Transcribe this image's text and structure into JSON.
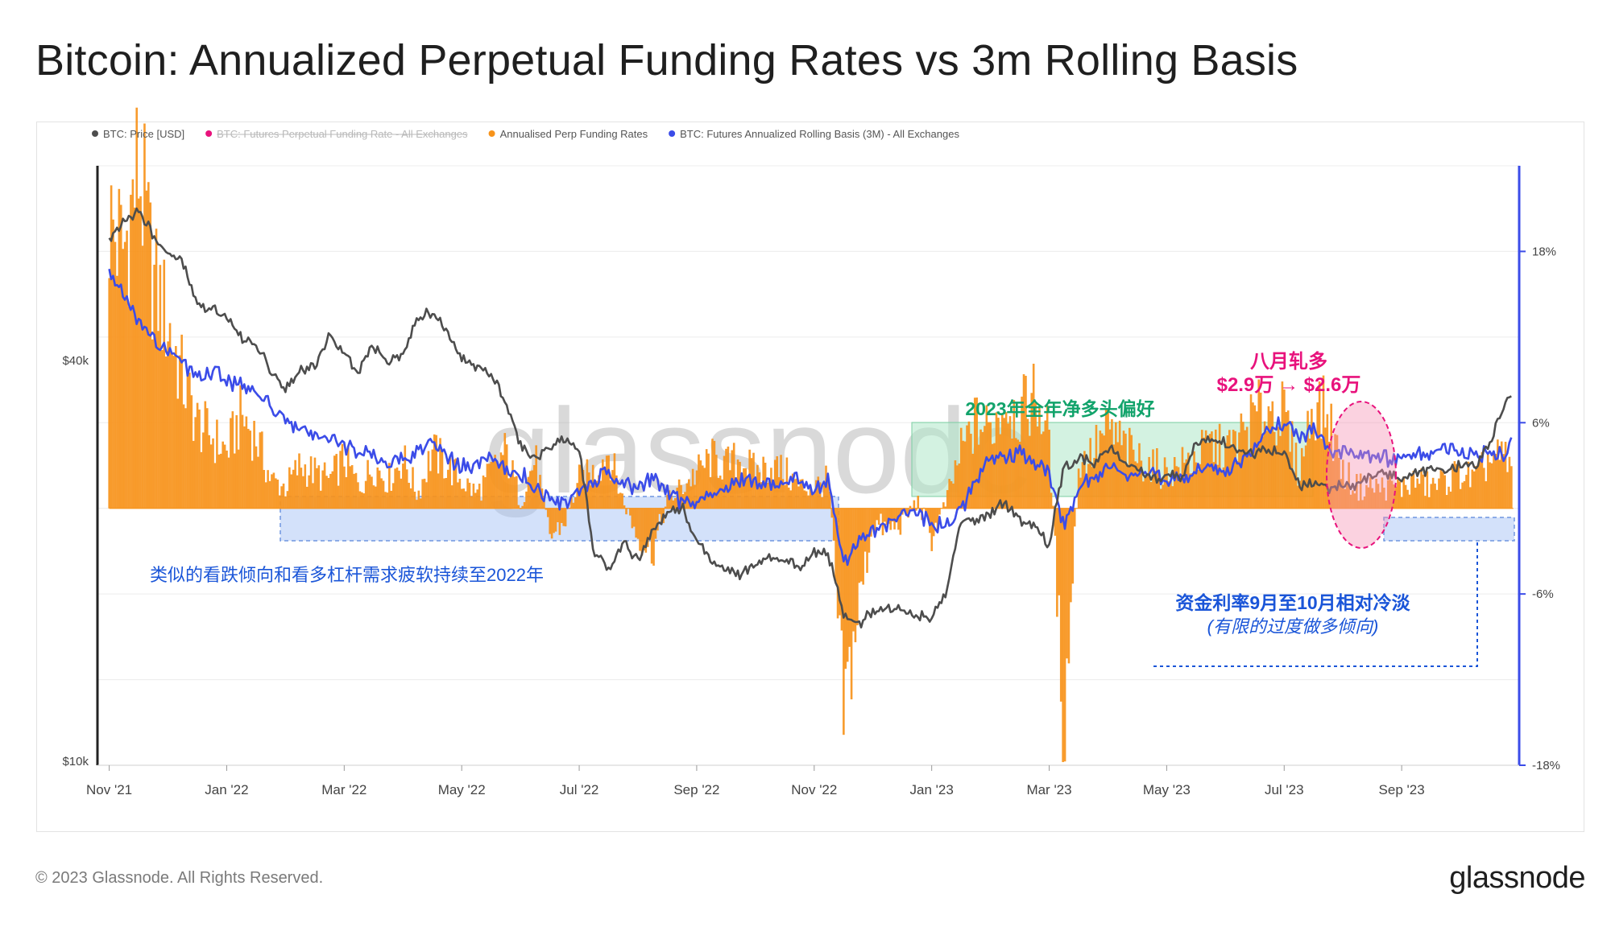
{
  "title": "Bitcoin: Annualized Perpetual Funding Rates vs 3m Rolling Basis",
  "footer": {
    "copyright": "© 2023 Glassnode. All Rights Reserved.",
    "brand": "glassnode"
  },
  "colors": {
    "price": "#4d4d4d",
    "funding_struck": "#e8127c",
    "funding_bars": "#f7931a",
    "basis": "#3b4ce8",
    "green": "#12a36b",
    "pink": "#e8127c",
    "blue_text": "#1a55d8"
  },
  "chart_data": {
    "type": "line",
    "watermark": "glassnode",
    "legend": [
      {
        "label": "BTC: Price [USD]",
        "color": "#4d4d4d",
        "struck": false
      },
      {
        "label": "BTC: Futures Perpetual Funding Rate - All Exchanges",
        "color": "#e8127c",
        "struck": true
      },
      {
        "label": "Annualised Perp Funding Rates",
        "color": "#f7931a",
        "struck": false
      },
      {
        "label": "BTC: Futures Annualized Rolling Basis (3M) - All Exchanges",
        "color": "#3b4ce8",
        "struck": false
      }
    ],
    "x_ticks": [
      "Nov '21",
      "Jan '22",
      "Mar '22",
      "May '22",
      "Jul '22",
      "Sep '22",
      "Nov '22",
      "Jan '23",
      "Mar '23",
      "May '23",
      "Jul '23",
      "Sep '23"
    ],
    "x_range_months": [
      -0.2,
      24.0
    ],
    "y_left": {
      "scale": "log",
      "ticks": [
        "$40k",
        "$10k"
      ],
      "tick_values": [
        40000,
        10000
      ]
    },
    "y_right": {
      "ticks": [
        "18%",
        "6%",
        "-6%",
        "-18%"
      ],
      "tick_values": [
        18,
        6,
        -6,
        -18
      ],
      "range": [
        -18,
        24
      ]
    },
    "series": [
      {
        "name": "BTC: Price [USD]",
        "axis": "left",
        "x": [
          0,
          0.25,
          0.5,
          0.75,
          1.0,
          1.25,
          1.5,
          1.75,
          2.0,
          2.25,
          2.5,
          2.75,
          3.0,
          3.25,
          3.5,
          3.75,
          4.0,
          4.25,
          4.5,
          4.75,
          5.0,
          5.25,
          5.5,
          5.75,
          6.0,
          6.25,
          6.5,
          6.75,
          7.0,
          7.25,
          7.5,
          7.75,
          8.0,
          8.25,
          8.5,
          8.75,
          9.0,
          9.25,
          9.5,
          9.75,
          10.0,
          10.25,
          10.5,
          10.75,
          11.0,
          11.25,
          11.5,
          11.75,
          12.0,
          12.25,
          12.5,
          12.75,
          13.0,
          13.25,
          13.5,
          13.75,
          14.0,
          14.25,
          14.5,
          14.75,
          15.0,
          15.25,
          15.5,
          15.75,
          16.0,
          16.25,
          16.5,
          16.75,
          17.0,
          17.25,
          17.5,
          17.75,
          18.0,
          18.25,
          18.5,
          18.75,
          19.0,
          19.25,
          19.5,
          19.75,
          20.0,
          20.25,
          20.5,
          20.75,
          21.0,
          21.25,
          21.5,
          21.75,
          22.0,
          22.25,
          22.5,
          22.75,
          23.0,
          23.25,
          23.5,
          23.75,
          23.9
        ],
        "values": [
          61000,
          64500,
          67000,
          62000,
          57500,
          56000,
          49000,
          47500,
          46500,
          43000,
          42000,
          38500,
          36500,
          38500,
          39000,
          43500,
          41000,
          38500,
          42000,
          39500,
          41000,
          46500,
          47500,
          44000,
          40500,
          39000,
          38000,
          35000,
          30000,
          28500,
          29500,
          30500,
          29000,
          20500,
          19500,
          21500,
          20000,
          22000,
          23500,
          24000,
          21500,
          20000,
          19500,
          19000,
          19800,
          20500,
          20000,
          19500,
          20800,
          20300,
          16500,
          16000,
          16800,
          17000,
          16800,
          16500,
          16500,
          17800,
          23000,
          23000,
          23500,
          24500,
          23000,
          22500,
          21000,
          27500,
          28500,
          28000,
          29500,
          28500,
          27500,
          26500,
          27000,
          26500,
          30000,
          30500,
          30000,
          29500,
          29200,
          29300,
          29000,
          26000,
          26000,
          25800,
          25900,
          26000,
          26800,
          27200,
          26500,
          27000,
          27500,
          27000,
          28000,
          27500,
          30000,
          34500,
          35000
        ]
      },
      {
        "name": "BTC: Futures Annualized Rolling Basis (3M) - All Exchanges",
        "axis": "right",
        "x": [
          0,
          0.25,
          0.5,
          0.75,
          1.0,
          1.25,
          1.5,
          1.75,
          2.0,
          2.25,
          2.5,
          2.75,
          3.0,
          3.25,
          3.5,
          3.75,
          4.0,
          4.25,
          4.5,
          4.75,
          5.0,
          5.25,
          5.5,
          5.75,
          6.0,
          6.25,
          6.5,
          6.75,
          7.0,
          7.25,
          7.5,
          7.75,
          8.0,
          8.25,
          8.5,
          8.75,
          9.0,
          9.25,
          9.5,
          9.75,
          10.0,
          10.25,
          10.5,
          10.75,
          11.0,
          11.25,
          11.5,
          11.75,
          12.0,
          12.25,
          12.5,
          12.75,
          13.0,
          13.25,
          13.5,
          13.75,
          14.0,
          14.25,
          14.5,
          14.75,
          15.0,
          15.25,
          15.5,
          15.75,
          16.0,
          16.25,
          16.5,
          16.75,
          17.0,
          17.25,
          17.5,
          17.75,
          18.0,
          18.25,
          18.5,
          18.75,
          19.0,
          19.25,
          19.5,
          19.75,
          20.0,
          20.25,
          20.5,
          20.75,
          21.0,
          21.25,
          21.5,
          21.75,
          22.0,
          22.25,
          22.5,
          22.75,
          23.0,
          23.25,
          23.5,
          23.75,
          23.9
        ],
        "values": [
          16.5,
          15.0,
          13.0,
          12.0,
          11.0,
          10.0,
          9.5,
          9.5,
          9.0,
          8.5,
          8.0,
          7.0,
          6.5,
          5.5,
          5.0,
          4.8,
          4.5,
          4.0,
          3.5,
          3.0,
          3.5,
          4.0,
          5.0,
          3.5,
          3.0,
          3.0,
          3.5,
          3.0,
          2.5,
          1.5,
          0.5,
          0.3,
          1.0,
          2.0,
          2.5,
          2.0,
          1.5,
          2.0,
          1.0,
          0.5,
          0.5,
          1.0,
          1.5,
          2.0,
          1.8,
          2.0,
          1.8,
          2.0,
          1.5,
          1.8,
          -4.0,
          -2.5,
          -1.5,
          -1.0,
          -0.5,
          -0.2,
          -1.0,
          -1.5,
          0.0,
          2.0,
          3.5,
          3.5,
          4.0,
          3.0,
          2.5,
          -1.5,
          1.5,
          2.0,
          3.0,
          2.5,
          2.5,
          2.5,
          2.0,
          2.0,
          2.5,
          3.0,
          2.5,
          3.5,
          4.5,
          5.5,
          6.0,
          5.0,
          5.5,
          4.0,
          4.0,
          3.8,
          3.5,
          3.5,
          3.6,
          3.6,
          3.8,
          4.0,
          4.0,
          3.5,
          3.8,
          3.8,
          4.5
        ]
      },
      {
        "name": "Annualised Perp Funding Rates",
        "axis": "right",
        "x": [
          0,
          0.25,
          0.5,
          0.75,
          1.0,
          1.25,
          1.5,
          1.75,
          2.0,
          2.25,
          2.5,
          2.75,
          3.0,
          3.25,
          3.5,
          3.75,
          4.0,
          4.25,
          4.5,
          4.75,
          5.0,
          5.25,
          5.5,
          5.75,
          6.0,
          6.25,
          6.5,
          6.75,
          7.0,
          7.25,
          7.5,
          7.75,
          8.0,
          8.25,
          8.5,
          8.75,
          9.0,
          9.25,
          9.5,
          9.75,
          10.0,
          10.25,
          10.5,
          10.75,
          11.0,
          11.25,
          11.5,
          11.75,
          12.0,
          12.25,
          12.5,
          12.75,
          13.0,
          13.25,
          13.5,
          13.75,
          14.0,
          14.25,
          14.5,
          14.75,
          15.0,
          15.25,
          15.5,
          15.75,
          16.0,
          16.25,
          16.5,
          16.75,
          17.0,
          17.25,
          17.5,
          17.75,
          18.0,
          18.25,
          18.5,
          18.75,
          19.0,
          19.25,
          19.5,
          19.75,
          20.0,
          20.25,
          20.5,
          20.75,
          21.0,
          21.25,
          21.5,
          21.75,
          22.0,
          22.25,
          22.5,
          22.75,
          23.0,
          23.25,
          23.5,
          23.75,
          23.9
        ],
        "values": [
          20.0,
          18.0,
          24.0,
          16.0,
          13.0,
          9.0,
          6.0,
          5.0,
          4.0,
          6.5,
          5.0,
          2.0,
          1.5,
          3.0,
          2.5,
          2.0,
          3.5,
          1.5,
          3.0,
          2.0,
          3.5,
          1.0,
          4.0,
          3.0,
          2.0,
          1.0,
          2.5,
          4.0,
          0.5,
          3.5,
          -2.0,
          -1.0,
          2.0,
          2.5,
          4.0,
          0.5,
          -2.0,
          -3.0,
          0.5,
          1.5,
          2.5,
          3.5,
          3.0,
          3.5,
          2.5,
          3.0,
          2.5,
          1.5,
          1.5,
          2.0,
          -14.5,
          -7.0,
          -1.0,
          -1.5,
          -1.0,
          0.5,
          -2.0,
          0.5,
          4.0,
          6.0,
          5.5,
          7.5,
          6.5,
          8.0,
          5.0,
          -15.5,
          3.0,
          4.0,
          5.5,
          4.5,
          3.5,
          3.0,
          2.5,
          3.0,
          3.5,
          4.5,
          4.0,
          5.0,
          6.5,
          7.0,
          6.5,
          2.5,
          7.5,
          6.5,
          2.5,
          1.5,
          1.5,
          1.5,
          1.5,
          2.0,
          1.5,
          2.0,
          2.5,
          2.0,
          3.5,
          3.5,
          2.5
        ]
      }
    ],
    "annotations": {
      "green_box_label": "2023年全年净多头偏好",
      "pink_title": "八月轧多",
      "pink_sub": "$2.9万 → $2.6万",
      "blue_left": "类似的看跌倾向和看多杠杆需求疲软持续至2022年",
      "blue_right_1": "资金利率9月至10月相对冷淡",
      "blue_right_2": "(有限的过度做多倾向)"
    }
  }
}
